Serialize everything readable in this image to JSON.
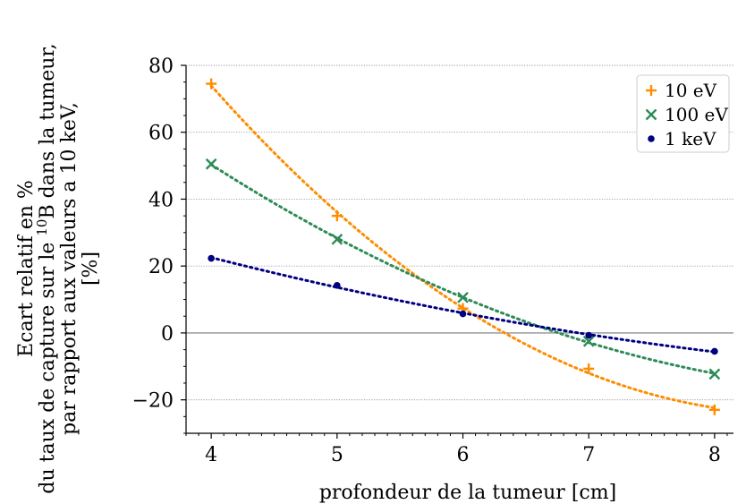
{
  "chart_data": {
    "type": "line",
    "xlabel": "profondeur de la tumeur [cm]",
    "ylabel_lines": [
      "Ecart relatif en %",
      "du taux de capture sur le ",
      "par rapport aux valeurs a 10 keV,",
      "[%]"
    ],
    "ylabel_isotope_mass": "10",
    "ylabel_isotope_symbol": "B",
    "ylabel_line2_suffix": " dans la tumeur,",
    "xlim": [
      3.8,
      8.15
    ],
    "ylim": [
      -30,
      80
    ],
    "x_ticks": [
      4,
      5,
      6,
      7,
      8
    ],
    "x_tick_labels": [
      "4",
      "5",
      "6",
      "7",
      "8"
    ],
    "y_ticks": [
      -20,
      0,
      20,
      40,
      60,
      80
    ],
    "y_tick_labels": [
      "−20",
      "0",
      "20",
      "40",
      "60",
      "80"
    ],
    "grid": "horizontal dotted",
    "legend_position": "top-right",
    "x": [
      4,
      5,
      6,
      7,
      8
    ],
    "series": [
      {
        "name": "10 eV",
        "marker": "plus",
        "color": "#ff8c00",
        "values": [
          74.5,
          35,
          7.3,
          -10.7,
          -23
        ]
      },
      {
        "name": "100 eV",
        "marker": "x",
        "color": "#2e8b57",
        "values": [
          50.5,
          28,
          10.6,
          -2.5,
          -12.3
        ]
      },
      {
        "name": "1 keV",
        "marker": "dot",
        "color": "#000080",
        "values": [
          22.3,
          14.2,
          5.7,
          -0.7,
          -5.5
        ]
      }
    ]
  }
}
